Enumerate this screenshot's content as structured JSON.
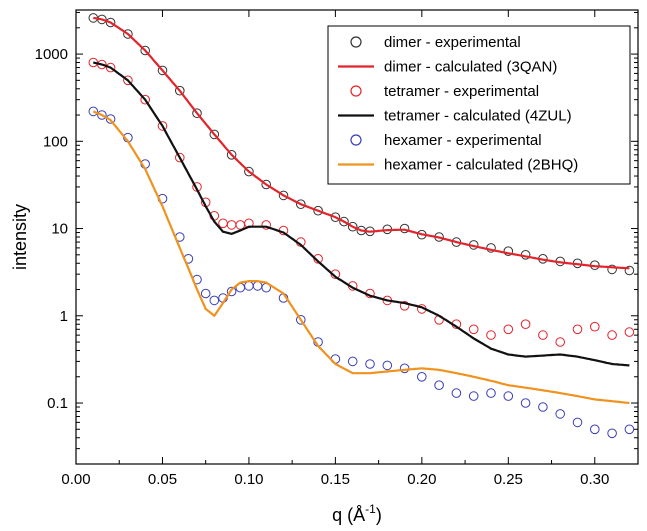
{
  "chart_data": {
    "type": "scatter",
    "title": "",
    "xlabel": "q (Å⁻¹)",
    "xlabel_main": "q (Å",
    "xlabel_sup": "-1",
    "xlabel_close": ")",
    "ylabel": "intensity",
    "xscale": "linear",
    "yscale": "log",
    "xlim": [
      0.0,
      0.325
    ],
    "ylim": [
      0.02,
      3200
    ],
    "x_ticks": [
      {
        "value": 0.0,
        "label": "0.00"
      },
      {
        "value": 0.05,
        "label": "0.05"
      },
      {
        "value": 0.1,
        "label": "0.10"
      },
      {
        "value": 0.15,
        "label": "0.15"
      },
      {
        "value": 0.2,
        "label": "0.20"
      },
      {
        "value": 0.25,
        "label": "0.25"
      },
      {
        "value": 0.3,
        "label": "0.30"
      }
    ],
    "y_ticks": [
      {
        "value": 1000,
        "label": "1000"
      },
      {
        "value": 100,
        "label": "100"
      },
      {
        "value": 10,
        "label": "10"
      },
      {
        "value": 1,
        "label": "1"
      },
      {
        "value": 0.1,
        "label": "0.1"
      }
    ],
    "grid": false,
    "legend_position": "top-right",
    "series": [
      {
        "name": "dimer - experimental",
        "kind": "markers",
        "color": "#333333",
        "x": [
          0.01,
          0.015,
          0.02,
          0.03,
          0.04,
          0.05,
          0.06,
          0.07,
          0.08,
          0.09,
          0.1,
          0.11,
          0.12,
          0.13,
          0.14,
          0.15,
          0.155,
          0.16,
          0.165,
          0.17,
          0.18,
          0.19,
          0.2,
          0.21,
          0.22,
          0.23,
          0.24,
          0.25,
          0.26,
          0.27,
          0.28,
          0.29,
          0.3,
          0.31,
          0.32
        ],
        "y": [
          2600,
          2500,
          2300,
          1700,
          1100,
          650,
          380,
          210,
          120,
          70,
          45,
          32,
          24,
          19,
          16,
          13.5,
          12,
          10.5,
          9.5,
          9.3,
          9.8,
          10,
          8.5,
          8,
          7,
          6.5,
          6,
          5.5,
          5,
          4.5,
          4.2,
          4,
          3.8,
          3.4,
          3.3
        ]
      },
      {
        "name": "dimer - calculated (3QAN)",
        "kind": "line",
        "color": "#e3242b",
        "x": [
          0.01,
          0.015,
          0.02,
          0.03,
          0.04,
          0.05,
          0.06,
          0.07,
          0.08,
          0.09,
          0.1,
          0.11,
          0.12,
          0.13,
          0.14,
          0.15,
          0.155,
          0.16,
          0.165,
          0.17,
          0.18,
          0.19,
          0.2,
          0.21,
          0.22,
          0.23,
          0.24,
          0.25,
          0.26,
          0.27,
          0.28,
          0.29,
          0.3,
          0.31,
          0.32
        ],
        "y": [
          2600,
          2500,
          2300,
          1700,
          1100,
          650,
          380,
          210,
          120,
          70,
          45,
          32,
          24,
          19,
          16,
          13.5,
          12,
          10.5,
          9.5,
          9.2,
          9.6,
          9.7,
          8.6,
          7.9,
          7,
          6.3,
          5.7,
          5.2,
          4.8,
          4.4,
          4.1,
          3.9,
          3.7,
          3.6,
          3.5
        ]
      },
      {
        "name": "tetramer - experimental",
        "kind": "markers",
        "color": "#e3242b",
        "x": [
          0.01,
          0.015,
          0.02,
          0.03,
          0.04,
          0.05,
          0.06,
          0.07,
          0.075,
          0.08,
          0.085,
          0.09,
          0.095,
          0.1,
          0.11,
          0.12,
          0.13,
          0.14,
          0.15,
          0.16,
          0.17,
          0.18,
          0.19,
          0.2,
          0.21,
          0.22,
          0.23,
          0.24,
          0.25,
          0.26,
          0.27,
          0.28,
          0.29,
          0.3,
          0.31,
          0.32
        ],
        "y": [
          800,
          760,
          700,
          500,
          300,
          150,
          65,
          30,
          20,
          14,
          11.5,
          11,
          11,
          11.5,
          11,
          9.5,
          7,
          4.5,
          3,
          2.2,
          1.8,
          1.5,
          1.3,
          1.2,
          0.9,
          0.8,
          0.7,
          0.6,
          0.7,
          0.8,
          0.6,
          0.5,
          0.7,
          0.75,
          0.6,
          0.65
        ]
      },
      {
        "name": "tetramer - calculated (4ZUL)",
        "kind": "line",
        "color": "#111111",
        "x": [
          0.01,
          0.015,
          0.02,
          0.03,
          0.04,
          0.05,
          0.06,
          0.07,
          0.075,
          0.08,
          0.085,
          0.09,
          0.095,
          0.1,
          0.11,
          0.12,
          0.13,
          0.14,
          0.15,
          0.16,
          0.17,
          0.18,
          0.19,
          0.2,
          0.21,
          0.22,
          0.23,
          0.24,
          0.25,
          0.26,
          0.27,
          0.28,
          0.29,
          0.3,
          0.31,
          0.32
        ],
        "y": [
          800,
          760,
          700,
          500,
          300,
          150,
          65,
          28,
          18,
          12,
          9.2,
          8.7,
          9.5,
          10.5,
          10.5,
          9,
          6.5,
          4.2,
          2.8,
          2.1,
          1.7,
          1.5,
          1.4,
          1.25,
          1.0,
          0.75,
          0.55,
          0.42,
          0.36,
          0.34,
          0.35,
          0.36,
          0.34,
          0.31,
          0.28,
          0.27
        ]
      },
      {
        "name": "hexamer - experimental",
        "kind": "markers",
        "color": "#3b3fb5",
        "x": [
          0.01,
          0.015,
          0.02,
          0.03,
          0.04,
          0.05,
          0.06,
          0.065,
          0.07,
          0.075,
          0.08,
          0.085,
          0.09,
          0.095,
          0.1,
          0.105,
          0.11,
          0.12,
          0.13,
          0.14,
          0.15,
          0.16,
          0.17,
          0.18,
          0.19,
          0.2,
          0.21,
          0.22,
          0.23,
          0.24,
          0.25,
          0.26,
          0.27,
          0.28,
          0.29,
          0.3,
          0.31,
          0.32
        ],
        "y": [
          220,
          200,
          180,
          110,
          55,
          22,
          8,
          4.5,
          2.6,
          1.8,
          1.5,
          1.6,
          1.9,
          2.1,
          2.2,
          2.2,
          2.1,
          1.6,
          0.9,
          0.5,
          0.32,
          0.3,
          0.28,
          0.27,
          0.25,
          0.2,
          0.16,
          0.13,
          0.12,
          0.13,
          0.12,
          0.1,
          0.09,
          0.075,
          0.06,
          0.05,
          0.045,
          0.05
        ]
      },
      {
        "name": "hexamer - calculated (2BHQ)",
        "kind": "line",
        "color": "#f0921e",
        "x": [
          0.01,
          0.015,
          0.02,
          0.03,
          0.04,
          0.05,
          0.06,
          0.065,
          0.07,
          0.075,
          0.08,
          0.085,
          0.09,
          0.095,
          0.1,
          0.105,
          0.11,
          0.12,
          0.13,
          0.14,
          0.15,
          0.16,
          0.17,
          0.18,
          0.19,
          0.2,
          0.21,
          0.22,
          0.23,
          0.24,
          0.25,
          0.26,
          0.27,
          0.28,
          0.29,
          0.3,
          0.31,
          0.32
        ],
        "y": [
          220,
          200,
          175,
          100,
          48,
          18,
          6,
          3.5,
          2,
          1.2,
          1.0,
          1.4,
          2.0,
          2.4,
          2.5,
          2.5,
          2.4,
          1.8,
          0.9,
          0.45,
          0.28,
          0.22,
          0.22,
          0.23,
          0.24,
          0.25,
          0.24,
          0.22,
          0.2,
          0.18,
          0.16,
          0.15,
          0.14,
          0.13,
          0.12,
          0.11,
          0.105,
          0.1
        ]
      }
    ]
  }
}
